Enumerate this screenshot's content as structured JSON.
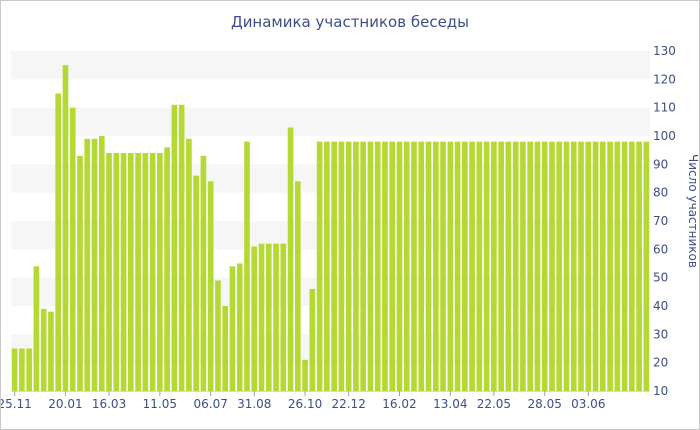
{
  "chart_data": {
    "type": "bar",
    "title": "Динамика участников беседы",
    "xlabel": "",
    "ylabel": "Число участников",
    "ylim": [
      10,
      130
    ],
    "yticks": [
      10,
      20,
      30,
      40,
      50,
      60,
      70,
      80,
      90,
      100,
      110,
      120,
      130
    ],
    "y_axis_side": "right",
    "grid": "alternating horizontal bands",
    "bar_color": "#b5d934",
    "band_color": "#f6f6f6",
    "text_color": "#3d4f86",
    "xticks": [
      {
        "label": "25.11",
        "index": 0
      },
      {
        "label": "20.01",
        "index": 7
      },
      {
        "label": "16.03",
        "index": 13
      },
      {
        "label": "11.05",
        "index": 20
      },
      {
        "label": "06.07",
        "index": 27
      },
      {
        "label": "31.08",
        "index": 33
      },
      {
        "label": "26.10",
        "index": 40
      },
      {
        "label": "22.12",
        "index": 46
      },
      {
        "label": "16.02",
        "index": 53
      },
      {
        "label": "13.04",
        "index": 60
      },
      {
        "label": "22.05",
        "index": 66
      },
      {
        "label": "28.05",
        "index": 73
      },
      {
        "label": "03.06",
        "index": 79
      }
    ],
    "values": [
      25,
      25,
      25,
      54,
      39,
      38,
      115,
      125,
      110,
      93,
      99,
      99,
      100,
      94,
      94,
      94,
      94,
      94,
      94,
      94,
      94,
      96,
      111,
      111,
      99,
      86,
      93,
      84,
      49,
      40,
      54,
      55,
      98,
      61,
      62,
      62,
      62,
      62,
      103,
      84,
      21,
      46,
      98,
      98,
      98,
      98,
      98,
      98,
      98,
      98,
      98,
      98,
      98,
      98,
      98,
      98,
      98,
      98,
      98,
      98,
      98,
      98,
      98,
      98,
      98,
      98,
      98,
      98,
      98,
      98,
      98,
      98,
      98,
      98,
      98,
      98,
      98,
      98,
      98,
      98,
      98,
      98,
      98,
      98,
      98,
      98,
      98,
      98
    ]
  }
}
